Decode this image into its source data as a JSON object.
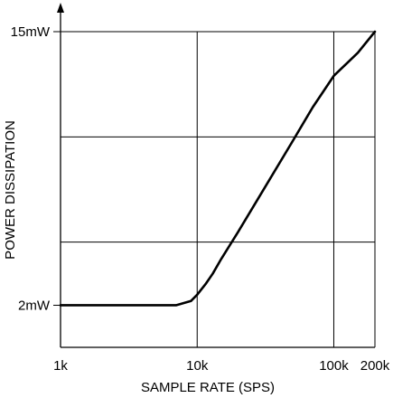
{
  "chart_data": {
    "type": "line",
    "title": "",
    "xlabel": "SAMPLE RATE (SPS)",
    "ylabel": "POWER DISSIPATION",
    "x_scale": "log",
    "xlim": [
      1000,
      200000
    ],
    "ylim": [
      0,
      15
    ],
    "x_ticks": [
      {
        "value": 1000,
        "label": "1k"
      },
      {
        "value": 10000,
        "label": "10k"
      },
      {
        "value": 100000,
        "label": "100k"
      },
      {
        "value": 200000,
        "label": "200k"
      }
    ],
    "y_ticks": [
      {
        "value": 2,
        "label": "2mW"
      },
      {
        "value": 15,
        "label": "15mW"
      }
    ],
    "y_gridlines": [
      5,
      10,
      15
    ],
    "grid": true,
    "series": [
      {
        "x": [
          1000,
          3000,
          7000,
          9000,
          10000,
          11500,
          13000,
          15000,
          20000,
          30000,
          50000,
          70000,
          100000,
          150000,
          200000
        ],
        "values": [
          2,
          2,
          2,
          2.2,
          2.5,
          3.0,
          3.5,
          4.2,
          5.5,
          7.4,
          9.8,
          11.4,
          12.9,
          14.0,
          15
        ]
      }
    ]
  }
}
